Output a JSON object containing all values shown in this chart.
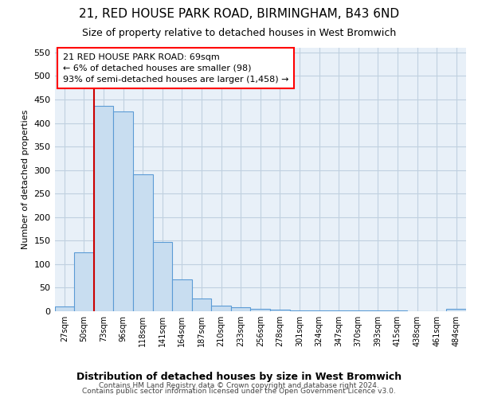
{
  "title": "21, RED HOUSE PARK ROAD, BIRMINGHAM, B43 6ND",
  "subtitle": "Size of property relative to detached houses in West Bromwich",
  "xlabel": "Distribution of detached houses by size in West Bromwich",
  "ylabel": "Number of detached properties",
  "footer1": "Contains HM Land Registry data © Crown copyright and database right 2024.",
  "footer2": "Contains public sector information licensed under the Open Government Licence v3.0.",
  "annotation_line1": "21 RED HOUSE PARK ROAD: 69sqm",
  "annotation_line2": "← 6% of detached houses are smaller (98)",
  "annotation_line3": "93% of semi-detached houses are larger (1,458) →",
  "bar_labels": [
    "27sqm",
    "50sqm",
    "73sqm",
    "96sqm",
    "118sqm",
    "141sqm",
    "164sqm",
    "187sqm",
    "210sqm",
    "233sqm",
    "256sqm",
    "278sqm",
    "301sqm",
    "324sqm",
    "347sqm",
    "370sqm",
    "393sqm",
    "415sqm",
    "438sqm",
    "461sqm",
    "484sqm"
  ],
  "bar_values": [
    10,
    125,
    437,
    425,
    290,
    147,
    68,
    27,
    11,
    8,
    5,
    3,
    2,
    1,
    1,
    1,
    1,
    1,
    0,
    0,
    5
  ],
  "bar_color": "#c8ddf0",
  "bar_edge_color": "#5b9bd5",
  "vline_color": "#cc0000",
  "vline_x": 2.0,
  "ylim": [
    0,
    560
  ],
  "yticks": [
    0,
    50,
    100,
    150,
    200,
    250,
    300,
    350,
    400,
    450,
    500,
    550
  ],
  "background_color": "#ffffff",
  "plot_bg_color": "#e8f0f8",
  "grid_color": "#c0d0e0",
  "title_fontsize": 11,
  "subtitle_fontsize": 9,
  "ylabel_fontsize": 8,
  "xlabel_fontsize": 9,
  "tick_fontsize": 7,
  "ann_fontsize": 8,
  "footer_fontsize": 6.5
}
